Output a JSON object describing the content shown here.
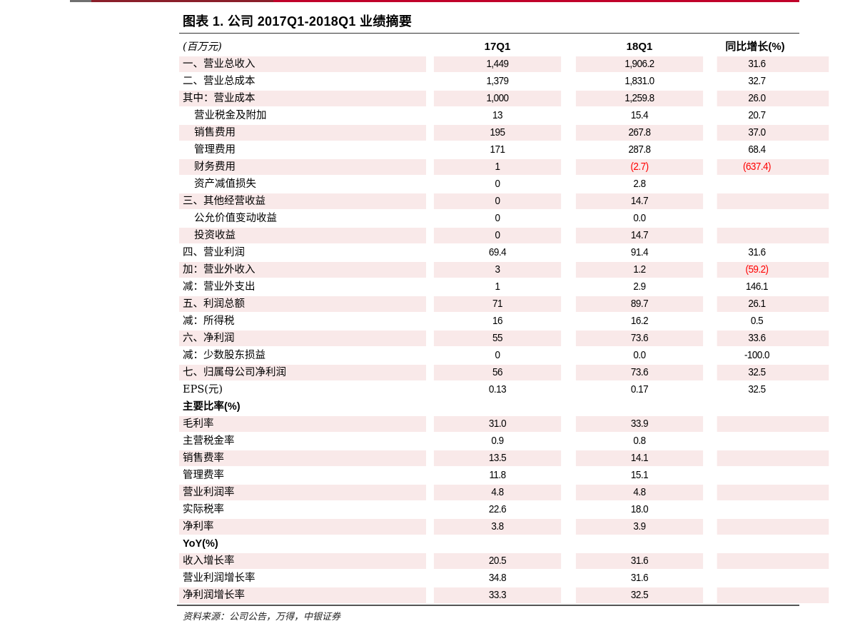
{
  "title": "图表 1. 公司 2017Q1-2018Q1 业绩摘要",
  "header": {
    "label": "(百万元)",
    "col1": "17Q1",
    "col2": "18Q1",
    "col3": "同比增长(%)"
  },
  "colors": {
    "shade": "#f9e9e9",
    "negative": "#ff0000",
    "accent_line": "#c0002a"
  },
  "rows": [
    {
      "label": "一、营业总收入",
      "v1": "1,449",
      "v2": "1,906.2",
      "v3": "31.6",
      "shaded": true
    },
    {
      "label": "二、营业总成本",
      "v1": "1,379",
      "v2": "1,831.0",
      "v3": "32.7",
      "shaded": false
    },
    {
      "label": "其中：营业成本",
      "v1": "1,000",
      "v2": "1,259.8",
      "v3": "26.0",
      "shaded": true
    },
    {
      "label": "营业税金及附加",
      "v1": "13",
      "v2": "15.4",
      "v3": "20.7",
      "shaded": false,
      "indent": true
    },
    {
      "label": "销售费用",
      "v1": "195",
      "v2": "267.8",
      "v3": "37.0",
      "shaded": true,
      "indent": true
    },
    {
      "label": "管理费用",
      "v1": "171",
      "v2": "287.8",
      "v3": "68.4",
      "shaded": false,
      "indent": true
    },
    {
      "label": "财务费用",
      "v1": "1",
      "v2": "(2.7)",
      "v3": "(637.4)",
      "shaded": true,
      "indent": true
    },
    {
      "label": "资产减值损失",
      "v1": "0",
      "v2": "2.8",
      "v3": "",
      "shaded": false,
      "indent": true
    },
    {
      "label": "三、其他经营收益",
      "v1": "0",
      "v2": "14.7",
      "v3": "",
      "shaded": true
    },
    {
      "label": "公允价值变动收益",
      "v1": "0",
      "v2": "0.0",
      "v3": "",
      "shaded": false,
      "indent": true
    },
    {
      "label": "投资收益",
      "v1": "0",
      "v2": "14.7",
      "v3": "",
      "shaded": true,
      "indent": true
    },
    {
      "label": "四、营业利润",
      "v1": "69.4",
      "v2": "91.4",
      "v3": "31.6",
      "shaded": false
    },
    {
      "label": "加：营业外收入",
      "v1": "3",
      "v2": "1.2",
      "v3": "(59.2)",
      "shaded": true
    },
    {
      "label": "减：营业外支出",
      "v1": "1",
      "v2": "2.9",
      "v3": "146.1",
      "shaded": false
    },
    {
      "label": "五、利润总额",
      "v1": "71",
      "v2": "89.7",
      "v3": "26.1",
      "shaded": true
    },
    {
      "label": "减：所得税",
      "v1": "16",
      "v2": "16.2",
      "v3": "0.5",
      "shaded": false
    },
    {
      "label": "六、净利润",
      "v1": "55",
      "v2": "73.6",
      "v3": "33.6",
      "shaded": true
    },
    {
      "label": "减：少数股东损益",
      "v1": "0",
      "v2": "0.0",
      "v3": "-100.0",
      "shaded": false
    },
    {
      "label": "七、归属母公司净利润",
      "v1": "56",
      "v2": "73.6",
      "v3": "32.5",
      "shaded": true
    },
    {
      "label": "EPS(元)",
      "v1": "0.13",
      "v2": "0.17",
      "v3": "32.5",
      "shaded": false
    },
    {
      "label": "主要比率(%)",
      "v1": "",
      "v2": "",
      "v3": "",
      "shaded": false,
      "section": true
    },
    {
      "label": "毛利率",
      "v1": "31.0",
      "v2": "33.9",
      "v3": "",
      "shaded": true
    },
    {
      "label": "主营税金率",
      "v1": "0.9",
      "v2": "0.8",
      "v3": "",
      "shaded": false
    },
    {
      "label": "销售费率",
      "v1": "13.5",
      "v2": "14.1",
      "v3": "",
      "shaded": true
    },
    {
      "label": "管理费率",
      "v1": "11.8",
      "v2": "15.1",
      "v3": "",
      "shaded": false
    },
    {
      "label": "营业利润率",
      "v1": "4.8",
      "v2": "4.8",
      "v3": "",
      "shaded": true
    },
    {
      "label": "实际税率",
      "v1": "22.6",
      "v2": "18.0",
      "v3": "",
      "shaded": false
    },
    {
      "label": "净利率",
      "v1": "3.8",
      "v2": "3.9",
      "v3": "",
      "shaded": true
    },
    {
      "label": "YoY(%)",
      "v1": "",
      "v2": "",
      "v3": "",
      "shaded": false,
      "section": true
    },
    {
      "label": "收入增长率",
      "v1": "20.5",
      "v2": "31.6",
      "v3": "",
      "shaded": true
    },
    {
      "label": "营业利润增长率",
      "v1": "34.8",
      "v2": "31.6",
      "v3": "",
      "shaded": false
    },
    {
      "label": "净利润增长率",
      "v1": "33.3",
      "v2": "32.5",
      "v3": "",
      "shaded": true
    }
  ],
  "source": "资料来源：公司公告，万得，中银证券"
}
